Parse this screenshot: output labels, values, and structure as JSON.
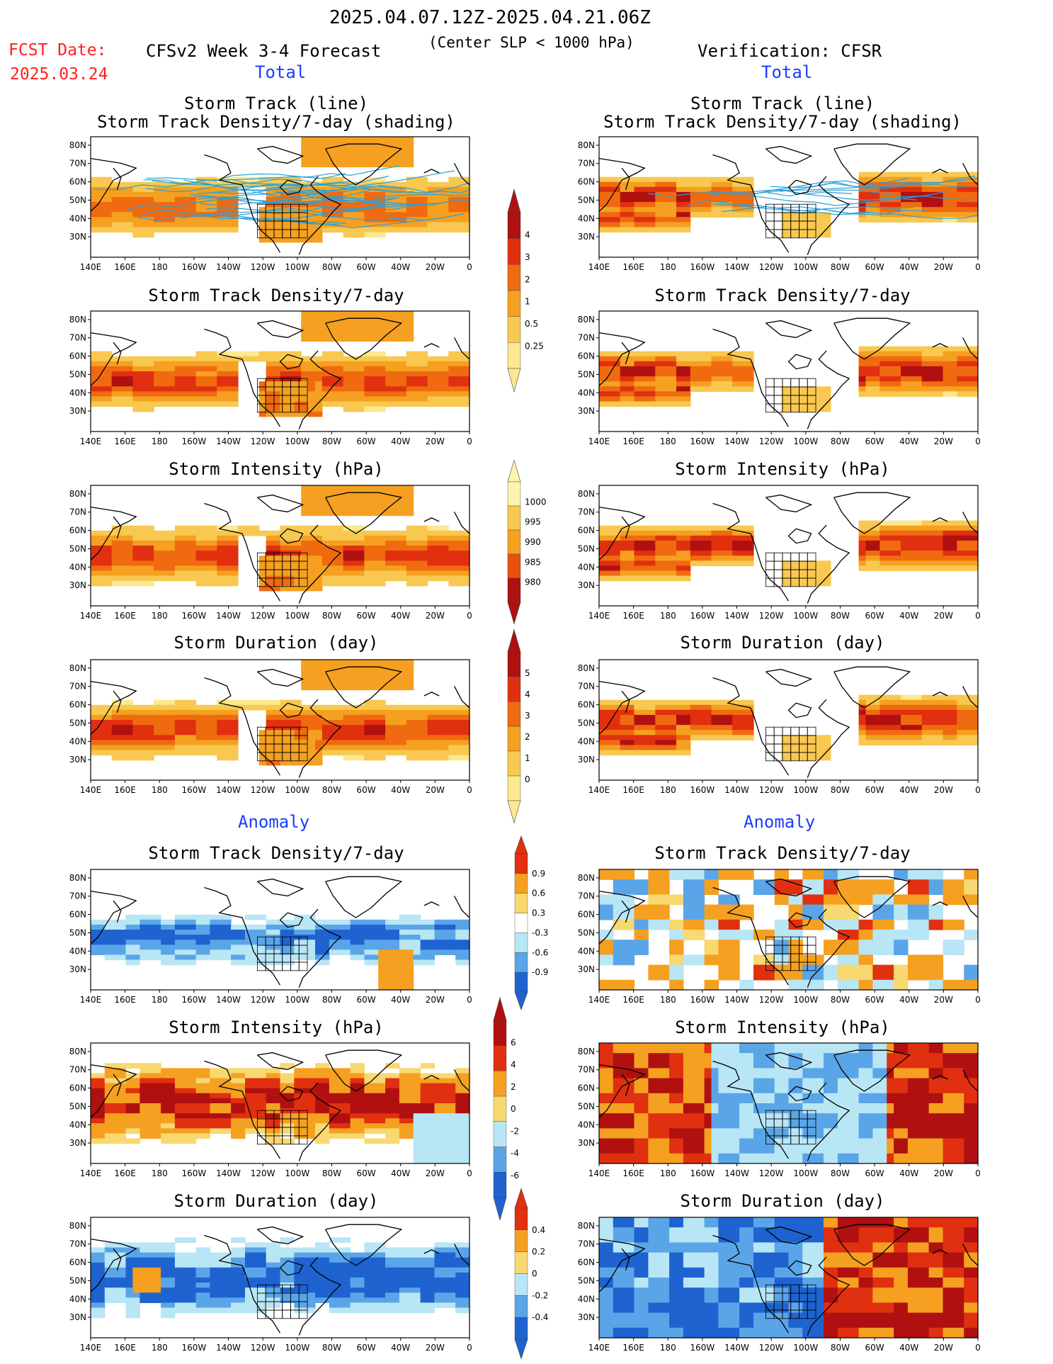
{
  "header": {
    "period": "2025.04.07.12Z-2025.04.21.06Z",
    "fcst_label": "FCST Date:",
    "fcst_date": "2025.03.24",
    "model_title": "CFSv2 Week 3-4 Forecast",
    "condition": "(Center SLP < 1000 hPa)",
    "verification": "Verification: CFSR",
    "left_section_total": "Total",
    "right_section_total": "Total",
    "left_section_anomaly": "Anomaly",
    "right_section_anomaly": "Anomaly"
  },
  "axes": {
    "lon_ticks": [
      "140E",
      "160E",
      "180",
      "160W",
      "140W",
      "120W",
      "100W",
      "80W",
      "60W",
      "40W",
      "20W",
      "0"
    ],
    "lat_ticks": [
      "80N",
      "70N",
      "60N",
      "50N",
      "40N",
      "30N"
    ]
  },
  "panel_titles": {
    "track_line": "Storm Track (line)",
    "track_density_shading": "Storm Track Density/7-day (shading)",
    "track_density": "Storm Track Density/7-day",
    "intensity": "Storm Intensity (hPa)",
    "duration": "Storm Duration (day)"
  },
  "colorbars": {
    "density": {
      "labels": [
        "4",
        "3",
        "2",
        "1",
        "0.5",
        "0.25"
      ],
      "colors": [
        "#b01010",
        "#e03010",
        "#f06a10",
        "#f5a020",
        "#f8c850",
        "#fbe890"
      ]
    },
    "intensity": {
      "labels": [
        "1000",
        "995",
        "990",
        "985",
        "980"
      ],
      "colors": [
        "#fff3b0",
        "#f8c850",
        "#f5a020",
        "#e85010",
        "#b01010"
      ]
    },
    "duration": {
      "labels": [
        "5",
        "4",
        "3",
        "2",
        "1",
        "0"
      ],
      "colors": [
        "#b01010",
        "#e03010",
        "#f06a10",
        "#f5a020",
        "#f8c850",
        "#fbe890"
      ]
    },
    "anom_density": {
      "labels": [
        "0.9",
        "0.6",
        "0.3",
        "-0.3",
        "-0.6",
        "-0.9"
      ],
      "colors": [
        "#e03010",
        "#f5a020",
        "#f8d870",
        "#ffffff",
        "#b8e6f5",
        "#5aa5e8",
        "#1e63d0"
      ]
    },
    "anom_intensity": {
      "labels": [
        "6",
        "4",
        "2",
        "0",
        "-2",
        "-4",
        "-6"
      ],
      "colors": [
        "#b01010",
        "#e03010",
        "#f5a020",
        "#f8d870",
        "#b8e6f5",
        "#5aa5e8",
        "#1e63d0"
      ]
    },
    "anom_duration": {
      "labels": [
        "0.4",
        "0.2",
        "0",
        "-0.2",
        "-0.4"
      ],
      "colors": [
        "#e03010",
        "#f5a020",
        "#f8d870",
        "#b8e6f5",
        "#5aa5e8",
        "#1e63d0"
      ]
    }
  },
  "colors": {
    "land_line": "#000000",
    "track_line": "#2aa0d8"
  }
}
